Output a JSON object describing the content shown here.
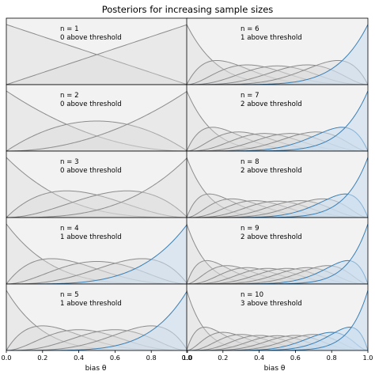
{
  "figure": {
    "title": "Posteriors for increasing sample sizes"
  },
  "colors": {
    "grey_line": "#8c8c8c",
    "grey_fill": "#d9d9d9",
    "blue_line": "#3a7fb5",
    "blue_fill": "#c9dcee",
    "panel_bg": "#f2f2f2",
    "axes_edge": "#000000"
  },
  "chart_data": {
    "type": "line",
    "description_of_curves": "Each panel overlays normalized Beta(k+1, n-k+1) posterior densities for k = 0..n over bias theta in [0, 1]; curves for k above threshold are blue.",
    "xlabel": "bias θ",
    "x_ticks": [
      "0.0",
      "0.2",
      "0.4",
      "0.6",
      "0.8",
      "1.0"
    ],
    "xlim": [
      0,
      1
    ],
    "grid": false,
    "layout": {
      "rows": 5,
      "cols": 2,
      "order": "column-major"
    },
    "panels": [
      {
        "n": 1,
        "n_label": "n = 1",
        "above": 0,
        "above_label": "0 above threshold"
      },
      {
        "n": 2,
        "n_label": "n = 2",
        "above": 0,
        "above_label": "0 above threshold"
      },
      {
        "n": 3,
        "n_label": "n = 3",
        "above": 0,
        "above_label": "0 above threshold"
      },
      {
        "n": 4,
        "n_label": "n = 4",
        "above": 1,
        "above_label": "1 above threshold"
      },
      {
        "n": 5,
        "n_label": "n = 5",
        "above": 1,
        "above_label": "1 above threshold"
      },
      {
        "n": 6,
        "n_label": "n = 6",
        "above": 1,
        "above_label": "1 above threshold"
      },
      {
        "n": 7,
        "n_label": "n = 7",
        "above": 2,
        "above_label": "2 above threshold"
      },
      {
        "n": 8,
        "n_label": "n = 8",
        "above": 2,
        "above_label": "2 above threshold"
      },
      {
        "n": 9,
        "n_label": "n = 9",
        "above": 2,
        "above_label": "2 above threshold"
      },
      {
        "n": 10,
        "n_label": "n = 10",
        "above": 3,
        "above_label": "3 above threshold"
      }
    ]
  }
}
